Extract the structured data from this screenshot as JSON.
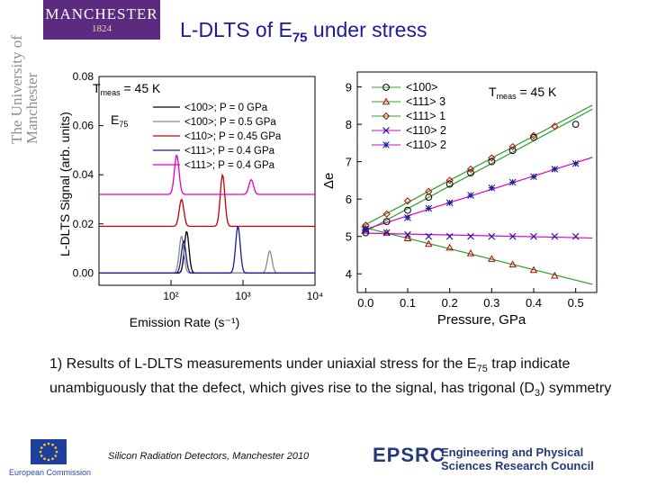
{
  "header": {
    "logo_name": "MANCHESTER",
    "logo_year": "1824",
    "side_wordmark": "The University of Manchester",
    "title_main": "L-DLTS of E",
    "title_sub": "75",
    "title_rest": " under stress"
  },
  "caption": {
    "part1": "1) Results of L-DLTS measurements under uniaxial stress for the E",
    "sub1": "75",
    "part2": " trap indicate unambiguously that the defect, which gives rise to the signal, has trigonal (D",
    "sub2": "3",
    "part3": ") symmetry"
  },
  "footer": {
    "text": "Silicon Radiation Detectors, Manchester  2010",
    "eu_caption": "European Commission",
    "epsrc_logo": "EPSRC",
    "epsrc_name": "Engineering and Physical Sciences Research Council"
  },
  "colors": {
    "black": "#000000",
    "gray": "#8a8a8a",
    "red": "#c00000",
    "navy": "#1a1a9a",
    "magenta": "#e000c8",
    "green": "#2ca02c",
    "brand": "#5c2a7e"
  },
  "chart_data": [
    {
      "type": "line",
      "xlabel": "Emission Rate (s⁻¹)",
      "ylabel": "L-DLTS Signal (arb. units)",
      "x_scale": "log",
      "xlim": [
        10,
        10000
      ],
      "ylim": [
        -0.005,
        0.08
      ],
      "yticks": [
        "0.00",
        "0.02",
        "0.04",
        "0.06",
        "0.08"
      ],
      "xticks": [
        "10²",
        "10³",
        "10⁴"
      ],
      "annotation": "T",
      "annotation_sub": "meas",
      "annotation_val": " = 45 K",
      "peak_label": "E",
      "peak_label_sub": "75",
      "series": [
        {
          "name": "<100>; P = 0 GPa",
          "color": "black",
          "offset": 0.0,
          "peaks": [
            [
              165,
              0.017
            ]
          ]
        },
        {
          "name": "<100>; P = 0.5 GPa",
          "color": "gray",
          "offset": 0.0,
          "peaks": [
            [
              140,
              0.015
            ],
            [
              2350,
              0.009
            ]
          ]
        },
        {
          "name": "<110>; P = 0.45 GPa",
          "color": "red",
          "offset": 0.019,
          "peaks": [
            [
              140,
              0.011
            ],
            [
              520,
              0.021
            ]
          ]
        },
        {
          "name": "<111>; P = 0.4 GPa",
          "color": "navy",
          "offset": 0.0,
          "peaks": [
            [
              150,
              0.013
            ],
            [
              850,
              0.019
            ]
          ]
        },
        {
          "name": "<111>; P = 0.4 GPa",
          "color": "magenta",
          "offset": 0.032,
          "peaks": [
            [
              120,
              0.016
            ],
            [
              1300,
              0.006
            ]
          ]
        }
      ]
    },
    {
      "type": "scatter",
      "xlabel": "Pressure, GPa",
      "ylabel": "Δe",
      "xlim": [
        -0.02,
        0.55
      ],
      "ylim": [
        3.5,
        9.4
      ],
      "xticks": [
        "0.0",
        "0.1",
        "0.2",
        "0.3",
        "0.4",
        "0.5"
      ],
      "yticks": [
        "4",
        "5",
        "6",
        "7",
        "8",
        "9"
      ],
      "annotation": "T",
      "annotation_sub": "meas",
      "annotation_val": " = 45 K",
      "legend": [
        "<100>",
        "<111> 3",
        "<111> 1",
        "<110> 2",
        "<110> 2"
      ],
      "series": [
        {
          "name": "<100>",
          "marker": "circle",
          "color": "black",
          "line": "green",
          "points": [
            [
              0.0,
              5.1
            ],
            [
              0.05,
              5.4
            ],
            [
              0.1,
              5.7
            ],
            [
              0.15,
              6.05
            ],
            [
              0.2,
              6.4
            ],
            [
              0.25,
              6.7
            ],
            [
              0.3,
              7.0
            ],
            [
              0.35,
              7.3
            ],
            [
              0.4,
              7.65
            ],
            [
              0.5,
              8.0
            ]
          ]
        },
        {
          "name": "<111> 3",
          "marker": "triangle",
          "color": "red",
          "line": "green",
          "points": [
            [
              0.0,
              5.2
            ],
            [
              0.05,
              5.1
            ],
            [
              0.1,
              4.95
            ],
            [
              0.15,
              4.8
            ],
            [
              0.2,
              4.7
            ],
            [
              0.25,
              4.55
            ],
            [
              0.3,
              4.4
            ],
            [
              0.35,
              4.25
            ],
            [
              0.4,
              4.1
            ],
            [
              0.45,
              3.95
            ]
          ]
        },
        {
          "name": "<111> 1",
          "marker": "diamond",
          "color": "red",
          "line": "green",
          "points": [
            [
              0.0,
              5.3
            ],
            [
              0.05,
              5.6
            ],
            [
              0.1,
              5.95
            ],
            [
              0.15,
              6.2
            ],
            [
              0.2,
              6.5
            ],
            [
              0.25,
              6.8
            ],
            [
              0.3,
              7.1
            ],
            [
              0.35,
              7.4
            ],
            [
              0.4,
              7.7
            ],
            [
              0.45,
              7.95
            ]
          ]
        },
        {
          "name": "<110> 2",
          "marker": "x",
          "color": "navy",
          "line": "magenta",
          "points": [
            [
              0.0,
              5.15
            ],
            [
              0.05,
              5.1
            ],
            [
              0.1,
              5.05
            ],
            [
              0.15,
              5.0
            ],
            [
              0.2,
              5.0
            ],
            [
              0.25,
              5.0
            ],
            [
              0.3,
              5.0
            ],
            [
              0.35,
              5.0
            ],
            [
              0.4,
              5.0
            ],
            [
              0.45,
              5.0
            ],
            [
              0.5,
              5.0
            ]
          ]
        },
        {
          "name": "<110> 2",
          "marker": "star",
          "color": "navy",
          "line": "magenta",
          "points": [
            [
              0.0,
              5.2
            ],
            [
              0.1,
              5.5
            ],
            [
              0.15,
              5.75
            ],
            [
              0.2,
              5.9
            ],
            [
              0.25,
              6.1
            ],
            [
              0.3,
              6.3
            ],
            [
              0.35,
              6.45
            ],
            [
              0.4,
              6.6
            ],
            [
              0.45,
              6.8
            ],
            [
              0.5,
              6.95
            ]
          ]
        }
      ]
    }
  ]
}
